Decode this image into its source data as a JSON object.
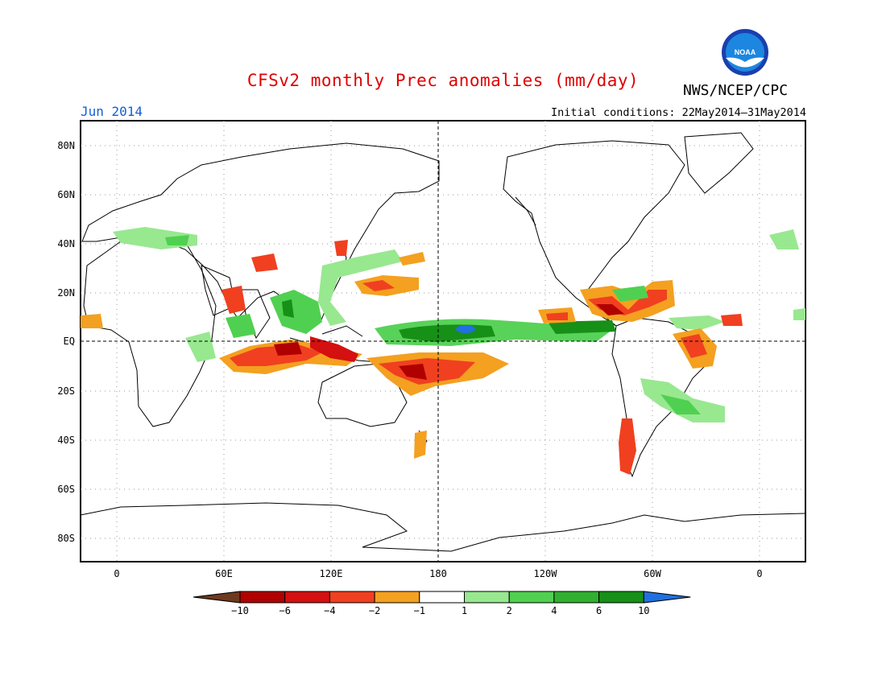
{
  "title": "CFSv2 monthly Prec anomalies (mm/day)",
  "agency": "NWS/NCEP/CPC",
  "logo_text": "NOAA",
  "period": "Jun 2014",
  "initial_conditions": "Initial conditions: 22May2014–31May2014",
  "lat_labels": [
    "80N",
    "60N",
    "40N",
    "20N",
    "EQ",
    "20S",
    "40S",
    "60S",
    "80S"
  ],
  "lon_labels": [
    "0",
    "60E",
    "120E",
    "180",
    "120W",
    "60W",
    "0"
  ],
  "colorbar": {
    "labels": [
      "−10",
      "−6",
      "−4",
      "−2",
      "−1",
      "1",
      "2",
      "4",
      "6",
      "10"
    ],
    "colors": [
      "#6e3a1e",
      "#b00000",
      "#d41010",
      "#f04020",
      "#f4a020",
      "#ffffff",
      "#98e890",
      "#50d050",
      "#30b030",
      "#169016",
      "#2070e0"
    ]
  },
  "colors": {
    "title": "#e00000",
    "period": "#1060d8"
  }
}
